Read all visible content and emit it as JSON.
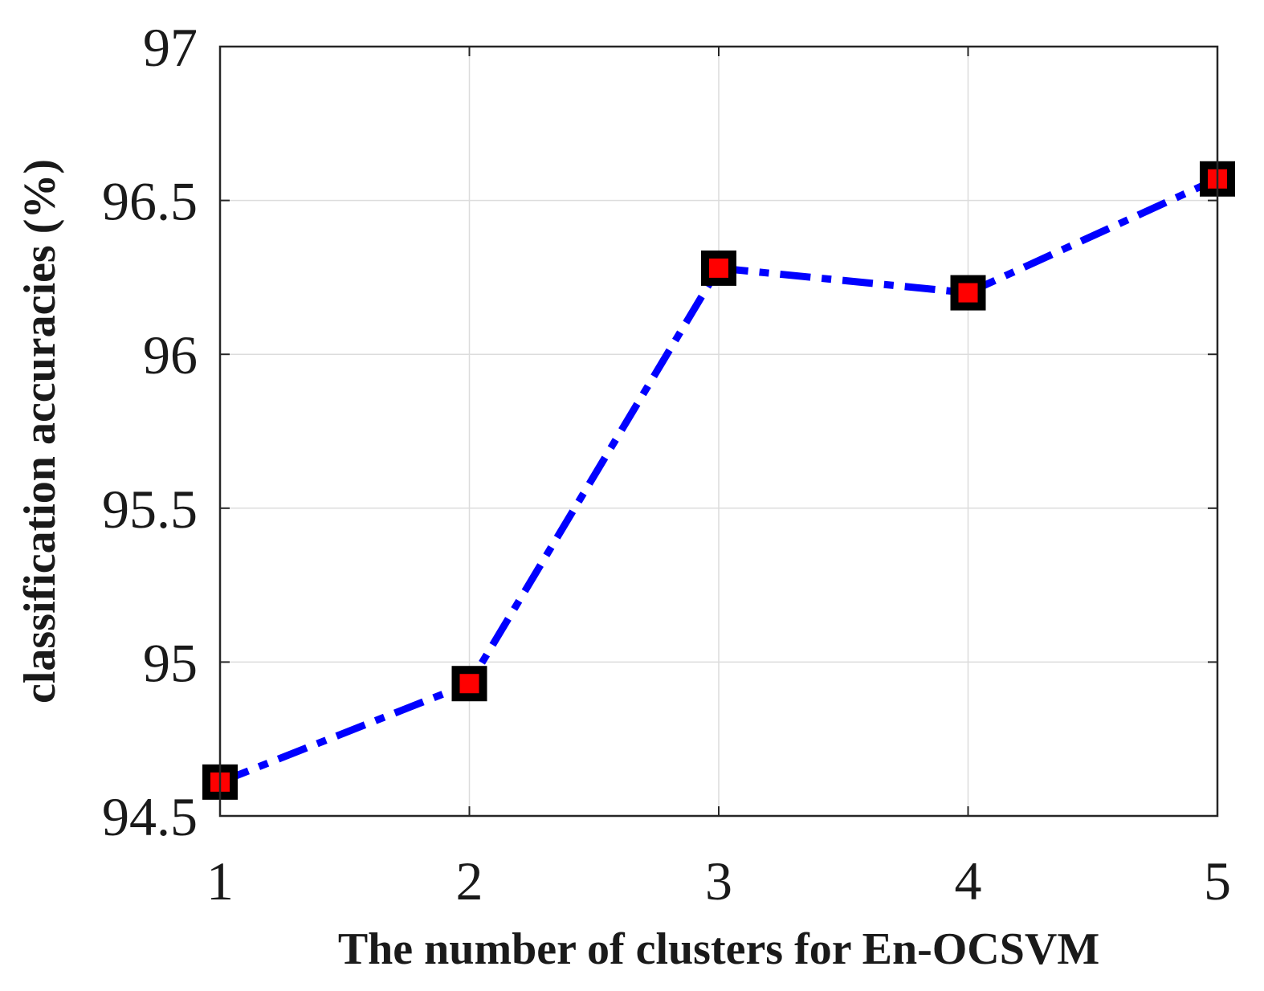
{
  "chart_data": {
    "type": "line",
    "title": "",
    "xlabel": "The number of clusters for En-OCSVM",
    "ylabel": "classification accuracies (%)",
    "x": [
      1,
      2,
      3,
      4,
      5
    ],
    "xlim": [
      1,
      5
    ],
    "ylim": [
      94.5,
      97
    ],
    "xticks": [
      "1",
      "2",
      "3",
      "4",
      "5"
    ],
    "yticks": [
      "94.5",
      "95",
      "95.5",
      "96",
      "96.5",
      "97"
    ],
    "grid": true,
    "series": [
      {
        "values": [
          94.61,
          94.93,
          96.28,
          96.2,
          96.57
        ],
        "line_color": "#0000ff",
        "line_style": "dash-dot",
        "marker": "square",
        "marker_edge_color": "#000000",
        "marker_face_color": "#ff0000"
      }
    ]
  }
}
